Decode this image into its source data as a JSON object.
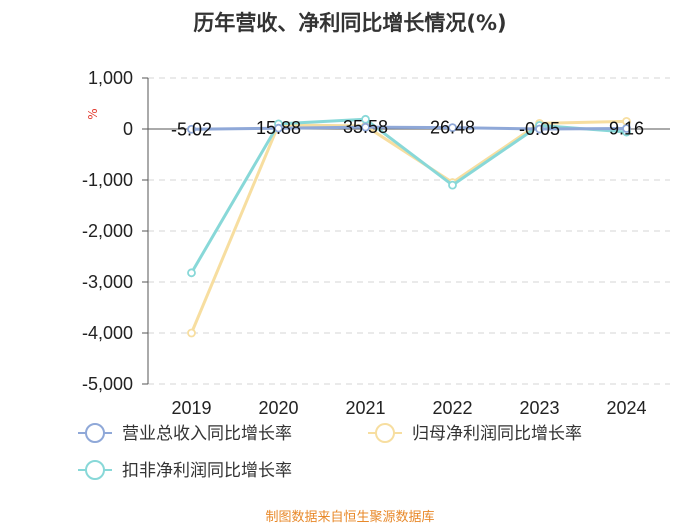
{
  "chart_data": {
    "type": "line",
    "title": "历年营收、净利同比增长情况(%)",
    "ylabel": "%",
    "xlabel": "",
    "categories": [
      "2019",
      "2020",
      "2021",
      "2022",
      "2023",
      "2024"
    ],
    "ylim": [
      -5000,
      1000
    ],
    "yticks": [
      1000,
      0,
      -1000,
      -2000,
      -3000,
      -4000,
      -5000
    ],
    "ytick_labels": [
      "1,000",
      "0",
      "-1,000",
      "-2,000",
      "-3,000",
      "-4,000",
      "-5,000"
    ],
    "grid": true,
    "legend_position": "bottom",
    "series": [
      {
        "name": "营业总收入同比增长率",
        "color": "#8fa8d8",
        "values": [
          -5.02,
          15.88,
          35.58,
          26.48,
          -0.05,
          9.16
        ],
        "labels": [
          "-5.02",
          "15.88",
          "35.58",
          "26.48",
          "-0.05",
          "9.16"
        ]
      },
      {
        "name": "归母净利润同比增长率",
        "color": "#f7dea0",
        "values": [
          -4000,
          80,
          60,
          -1050,
          110,
          150
        ]
      },
      {
        "name": "扣非净利润同比增长率",
        "color": "#88d8d8",
        "values": [
          -2820,
          100,
          190,
          -1100,
          70,
          -60
        ]
      }
    ],
    "source": "制图数据来自恒生聚源数据库"
  }
}
